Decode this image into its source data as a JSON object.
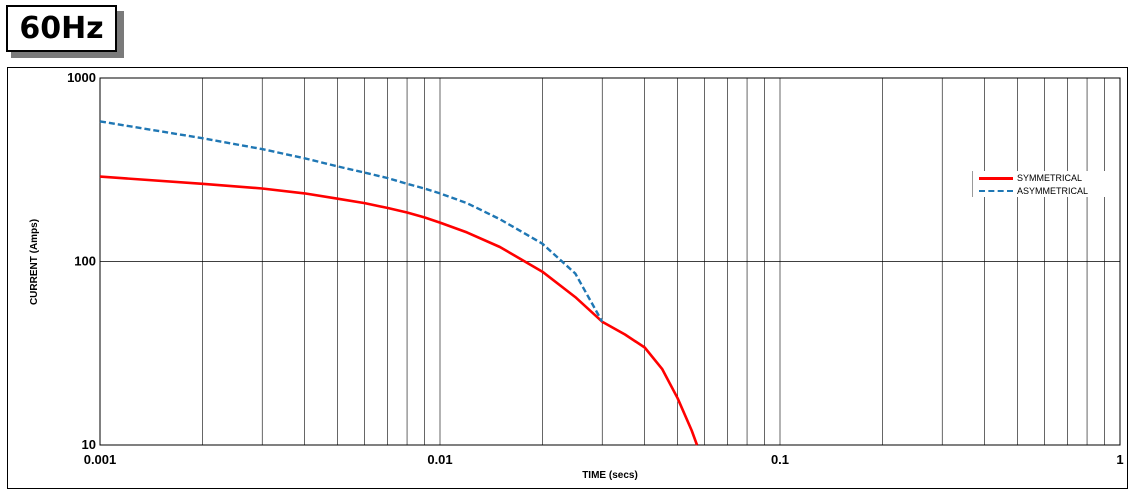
{
  "badge": {
    "label": "60Hz"
  },
  "chart_data": {
    "type": "line",
    "xscale": "log",
    "yscale": "log",
    "xlim": [
      0.001,
      1
    ],
    "ylim": [
      10,
      1000
    ],
    "xlabel": "TIME (secs)",
    "ylabel": "CURRENT (Amps)",
    "x_ticks": [
      "0.001",
      "0.01",
      "0.1",
      "1"
    ],
    "y_ticks": [
      "10",
      "100",
      "1000"
    ],
    "grid": true,
    "legend_position": "right",
    "series": [
      {
        "name": "SYMMETRICAL",
        "color": "#ff0000",
        "style": "solid",
        "x": [
          0.001,
          0.002,
          0.003,
          0.004,
          0.005,
          0.006,
          0.007,
          0.008,
          0.009,
          0.01,
          0.012,
          0.015,
          0.02,
          0.025,
          0.03,
          0.035,
          0.04,
          0.045,
          0.05,
          0.055,
          0.057
        ],
        "y": [
          290,
          265,
          250,
          235,
          220,
          208,
          196,
          185,
          174,
          163,
          144,
          120,
          88,
          64,
          47,
          40,
          34,
          26,
          18,
          12,
          10
        ]
      },
      {
        "name": "ASYMMETRICAL",
        "color": "#1f77b4",
        "style": "dashed",
        "x": [
          0.001,
          0.002,
          0.003,
          0.004,
          0.005,
          0.006,
          0.007,
          0.008,
          0.009,
          0.01,
          0.012,
          0.015,
          0.02,
          0.025,
          0.03
        ],
        "y": [
          580,
          470,
          410,
          365,
          330,
          305,
          285,
          265,
          250,
          235,
          208,
          170,
          125,
          86,
          47
        ]
      }
    ]
  }
}
